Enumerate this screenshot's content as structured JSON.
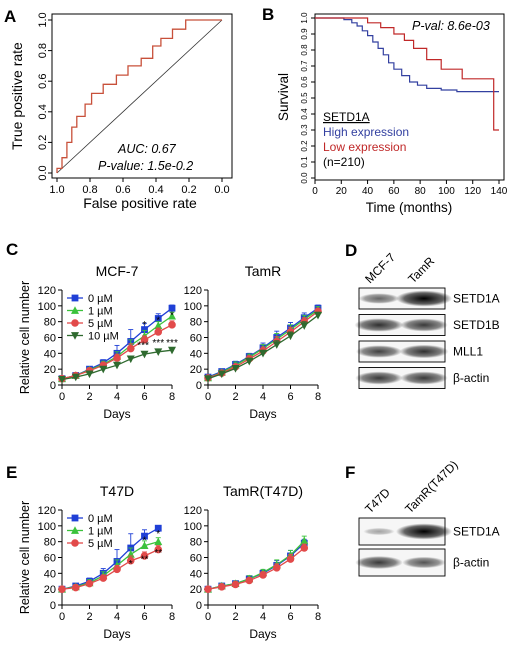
{
  "panel_letters": [
    "A",
    "B",
    "C",
    "D",
    "E",
    "F"
  ],
  "colors": {
    "blue": "#1f3fd6",
    "green": "#3cc23c",
    "red": "#e24a4a",
    "darkgreen": "#2f6a2f",
    "roc": "#c8503a",
    "kmHigh": "#3340a0",
    "kmLow": "#c02828"
  },
  "chart_data": [
    {
      "id": "A",
      "type": "line",
      "xlabel": "False positive rate",
      "ylabel": "True positive rate",
      "xticks": [
        "1.0",
        "0.8",
        "0.6",
        "0.4",
        "0.2",
        "0.0"
      ],
      "yticks": [
        "0.0",
        "0.2",
        "0.4",
        "0.6",
        "0.8",
        "1.0"
      ],
      "xlim": [
        1.0,
        0.0
      ],
      "ylim": [
        0,
        1
      ],
      "annotations": [
        "AUC: 0.67",
        "P-value: 1.5e-0.2"
      ],
      "series": [
        {
          "points": [
            [
              1.0,
              0
            ],
            [
              1.0,
              0.03
            ],
            [
              0.97,
              0.03
            ],
            [
              0.97,
              0.1
            ],
            [
              0.94,
              0.1
            ],
            [
              0.94,
              0.2
            ],
            [
              0.91,
              0.2
            ],
            [
              0.91,
              0.3
            ],
            [
              0.88,
              0.3
            ],
            [
              0.88,
              0.37
            ],
            [
              0.83,
              0.37
            ],
            [
              0.83,
              0.45
            ],
            [
              0.79,
              0.45
            ],
            [
              0.79,
              0.52
            ],
            [
              0.72,
              0.52
            ],
            [
              0.72,
              0.58
            ],
            [
              0.64,
              0.58
            ],
            [
              0.64,
              0.64
            ],
            [
              0.57,
              0.64
            ],
            [
              0.57,
              0.7
            ],
            [
              0.49,
              0.7
            ],
            [
              0.49,
              0.75
            ],
            [
              0.42,
              0.75
            ],
            [
              0.42,
              0.83
            ],
            [
              0.37,
              0.83
            ],
            [
              0.37,
              0.88
            ],
            [
              0.3,
              0.88
            ],
            [
              0.3,
              0.94
            ],
            [
              0.22,
              0.94
            ],
            [
              0.22,
              1.0
            ],
            [
              0.0,
              1.0
            ]
          ]
        }
      ],
      "diagonal": [
        [
          1.0,
          0
        ],
        [
          0.0,
          1.0
        ]
      ]
    },
    {
      "id": "B",
      "type": "line",
      "xlabel": "Time (months)",
      "ylabel": "Survival",
      "xticks": [
        0,
        20,
        40,
        60,
        80,
        100,
        120,
        140
      ],
      "yticks": [
        "0.0",
        "0.1",
        "0.2",
        "0.3",
        "0.4",
        "0.5",
        "0.6",
        "0.7",
        "0.8",
        "0.9",
        "1.0"
      ],
      "xlim": [
        0,
        140
      ],
      "ylim": [
        0,
        1
      ],
      "pval": "P-val: 8.6e-03",
      "legend_title": "SETD1A",
      "legend": [
        "High expression",
        "Low expression",
        "(n=210)"
      ],
      "series": [
        {
          "name": "High expression",
          "color": "kmHigh",
          "points": [
            [
              0,
              1
            ],
            [
              22,
              1
            ],
            [
              22,
              0.99
            ],
            [
              28,
              0.99
            ],
            [
              28,
              0.97
            ],
            [
              32,
              0.97
            ],
            [
              32,
              0.95
            ],
            [
              36,
              0.95
            ],
            [
              36,
              0.92
            ],
            [
              40,
              0.92
            ],
            [
              40,
              0.89
            ],
            [
              44,
              0.89
            ],
            [
              44,
              0.85
            ],
            [
              48,
              0.85
            ],
            [
              48,
              0.81
            ],
            [
              52,
              0.81
            ],
            [
              52,
              0.77
            ],
            [
              56,
              0.77
            ],
            [
              56,
              0.72
            ],
            [
              60,
              0.72
            ],
            [
              60,
              0.68
            ],
            [
              66,
              0.68
            ],
            [
              66,
              0.64
            ],
            [
              72,
              0.64
            ],
            [
              72,
              0.6
            ],
            [
              78,
              0.6
            ],
            [
              78,
              0.58
            ],
            [
              85,
              0.58
            ],
            [
              85,
              0.56
            ],
            [
              96,
              0.56
            ],
            [
              96,
              0.55
            ],
            [
              108,
              0.55
            ],
            [
              108,
              0.54
            ],
            [
              140,
              0.54
            ]
          ]
        },
        {
          "name": "Low expression",
          "color": "kmLow",
          "points": [
            [
              0,
              1
            ],
            [
              40,
              1
            ],
            [
              40,
              0.97
            ],
            [
              50,
              0.97
            ],
            [
              50,
              0.94
            ],
            [
              60,
              0.94
            ],
            [
              60,
              0.9
            ],
            [
              68,
              0.9
            ],
            [
              68,
              0.86
            ],
            [
              75,
              0.86
            ],
            [
              75,
              0.81
            ],
            [
              85,
              0.81
            ],
            [
              85,
              0.74
            ],
            [
              96,
              0.74
            ],
            [
              96,
              0.68
            ],
            [
              112,
              0.68
            ],
            [
              112,
              0.62
            ],
            [
              136,
              0.62
            ],
            [
              136,
              0.3
            ],
            [
              140,
              0.3
            ]
          ]
        }
      ]
    },
    {
      "id": "C1",
      "type": "line",
      "title": "MCF-7",
      "xlabel": "Days",
      "ylabel": "Relative cell number",
      "xticks": [
        0,
        2,
        4,
        6,
        8
      ],
      "yticks": [
        0,
        20,
        40,
        60,
        80,
        100,
        120
      ],
      "ylim": [
        0,
        120
      ],
      "legend": [
        "0 µM",
        "1 µM",
        "5 µM",
        "10 µM"
      ],
      "x": [
        0,
        1,
        2,
        3,
        4,
        5,
        6,
        7,
        8
      ],
      "series": [
        {
          "name": "0 µM",
          "color": "blue",
          "marker": "square",
          "values": [
            8,
            12,
            20,
            28,
            40,
            55,
            70,
            84,
            97
          ],
          "err": [
            2,
            2,
            3,
            4,
            10,
            15,
            8,
            6,
            4
          ]
        },
        {
          "name": "1 µM",
          "color": "green",
          "marker": "triangle",
          "values": [
            8,
            12,
            19,
            26,
            36,
            50,
            62,
            75,
            87
          ],
          "err": [
            2,
            2,
            3,
            4,
            6,
            7,
            7,
            5,
            5
          ]
        },
        {
          "name": "5 µM",
          "color": "red",
          "marker": "circle",
          "values": [
            8,
            12,
            18,
            25,
            34,
            46,
            57,
            67,
            76
          ],
          "err": [
            2,
            2,
            3,
            3,
            5,
            6,
            5,
            5,
            5
          ]
        },
        {
          "name": "10 µM",
          "color": "darkgreen",
          "marker": "triangle-down",
          "values": [
            7,
            10,
            14,
            20,
            25,
            33,
            39,
            42,
            44
          ],
          "err": [
            1,
            2,
            2,
            3,
            3,
            3,
            3,
            3,
            3
          ]
        }
      ],
      "significance": [
        {
          "x": 6,
          "y": 72,
          "text": "*"
        },
        {
          "x": 7,
          "y": 78,
          "text": "*"
        },
        {
          "x": 8,
          "y": 84,
          "text": "*"
        },
        {
          "x": 5.9,
          "y": 46,
          "text": "***"
        },
        {
          "x": 7,
          "y": 49,
          "text": "***"
        },
        {
          "x": 8,
          "y": 49,
          "text": "***"
        }
      ]
    },
    {
      "id": "C2",
      "type": "line",
      "title": "TamR",
      "xlabel": "Days",
      "xticks": [
        0,
        2,
        4,
        6,
        8
      ],
      "yticks": [
        0,
        20,
        40,
        60,
        80,
        100,
        120
      ],
      "ylim": [
        0,
        120
      ],
      "x": [
        0,
        1,
        2,
        3,
        4,
        5,
        6,
        7,
        8
      ],
      "series": [
        {
          "name": "0 µM",
          "color": "blue",
          "marker": "square",
          "values": [
            10,
            17,
            26,
            36,
            47,
            60,
            72,
            85,
            97
          ],
          "err": [
            3,
            3,
            4,
            4,
            6,
            8,
            7,
            6,
            4
          ]
        },
        {
          "name": "1 µM",
          "color": "green",
          "marker": "triangle",
          "values": [
            9,
            16,
            25,
            35,
            46,
            58,
            70,
            83,
            95
          ],
          "err": [
            3,
            3,
            4,
            4,
            5,
            7,
            6,
            5,
            4
          ]
        },
        {
          "name": "5 µM",
          "color": "red",
          "marker": "circle",
          "values": [
            9,
            15,
            23,
            33,
            43,
            55,
            67,
            80,
            93
          ],
          "err": [
            3,
            3,
            3,
            4,
            5,
            6,
            6,
            5,
            4
          ]
        },
        {
          "name": "10 µM",
          "color": "darkgreen",
          "marker": "triangle-down",
          "values": [
            8,
            14,
            21,
            30,
            40,
            51,
            62,
            75,
            88
          ],
          "err": [
            2,
            3,
            3,
            4,
            4,
            5,
            5,
            5,
            4
          ]
        }
      ]
    },
    {
      "id": "E1",
      "type": "line",
      "title": "T47D",
      "xlabel": "Days",
      "ylabel": "Relative cell number",
      "xticks": [
        0,
        2,
        4,
        6,
        8
      ],
      "yticks": [
        0,
        20,
        40,
        60,
        80,
        100,
        120
      ],
      "ylim": [
        0,
        120
      ],
      "legend": [
        "0 µM",
        "1 µM",
        "5 µM"
      ],
      "x": [
        0,
        1,
        2,
        3,
        4,
        5,
        6,
        7
      ],
      "series": [
        {
          "name": "0 µM",
          "color": "blue",
          "marker": "square",
          "values": [
            20,
            24,
            30,
            40,
            55,
            72,
            87,
            97
          ],
          "err": [
            3,
            3,
            4,
            6,
            15,
            18,
            8,
            3
          ]
        },
        {
          "name": "1 µM",
          "color": "green",
          "marker": "triangle",
          "values": [
            20,
            23,
            28,
            37,
            50,
            64,
            75,
            80
          ],
          "err": [
            3,
            3,
            4,
            5,
            7,
            8,
            6,
            5
          ]
        },
        {
          "name": "5 µM",
          "color": "red",
          "marker": "circle",
          "values": [
            20,
            22,
            27,
            34,
            45,
            56,
            62,
            70
          ],
          "err": [
            3,
            3,
            3,
            4,
            5,
            6,
            5,
            5
          ]
        }
      ],
      "significance": [
        {
          "x": 6,
          "y": 78,
          "text": "*"
        },
        {
          "x": 7,
          "y": 86,
          "text": "*"
        },
        {
          "x": 5,
          "y": 48,
          "text": "*"
        },
        {
          "x": 6,
          "y": 54,
          "text": "**"
        },
        {
          "x": 7,
          "y": 62,
          "text": "**"
        }
      ]
    },
    {
      "id": "E2",
      "type": "line",
      "title": "TamR(T47D)",
      "xlabel": "Days",
      "xticks": [
        0,
        2,
        4,
        6,
        8
      ],
      "yticks": [
        0,
        20,
        40,
        60,
        80,
        100,
        120
      ],
      "ylim": [
        0,
        120
      ],
      "x": [
        0,
        1,
        2,
        3,
        4,
        5,
        6,
        7
      ],
      "series": [
        {
          "name": "0 µM",
          "color": "blue",
          "marker": "square",
          "values": [
            20,
            24,
            27,
            33,
            40,
            50,
            62,
            78
          ],
          "err": [
            3,
            3,
            3,
            4,
            4,
            6,
            7,
            5
          ]
        },
        {
          "name": "1 µM",
          "color": "green",
          "marker": "triangle",
          "values": [
            20,
            24,
            27,
            33,
            41,
            51,
            63,
            81
          ],
          "err": [
            3,
            3,
            3,
            4,
            4,
            6,
            6,
            6
          ]
        },
        {
          "name": "5 µM",
          "color": "red",
          "marker": "circle",
          "values": [
            20,
            23,
            26,
            31,
            38,
            47,
            58,
            72
          ],
          "err": [
            3,
            3,
            3,
            3,
            4,
            5,
            6,
            5
          ]
        }
      ]
    }
  ],
  "blot_D": {
    "lanes": [
      "MCF-7",
      "TamR"
    ],
    "bands": [
      "SETD1A",
      "SETD1B",
      "MLL1",
      "β-actin"
    ],
    "intensity": [
      [
        0.45,
        1.0
      ],
      [
        0.75,
        0.7
      ],
      [
        0.65,
        0.75
      ],
      [
        0.7,
        0.7
      ]
    ]
  },
  "blot_F": {
    "lanes": [
      "T47D",
      "TamR(T47D)"
    ],
    "bands": [
      "SETD1A",
      "β-actin"
    ],
    "intensity": [
      [
        0.12,
        1.0
      ],
      [
        0.7,
        0.55
      ]
    ]
  }
}
